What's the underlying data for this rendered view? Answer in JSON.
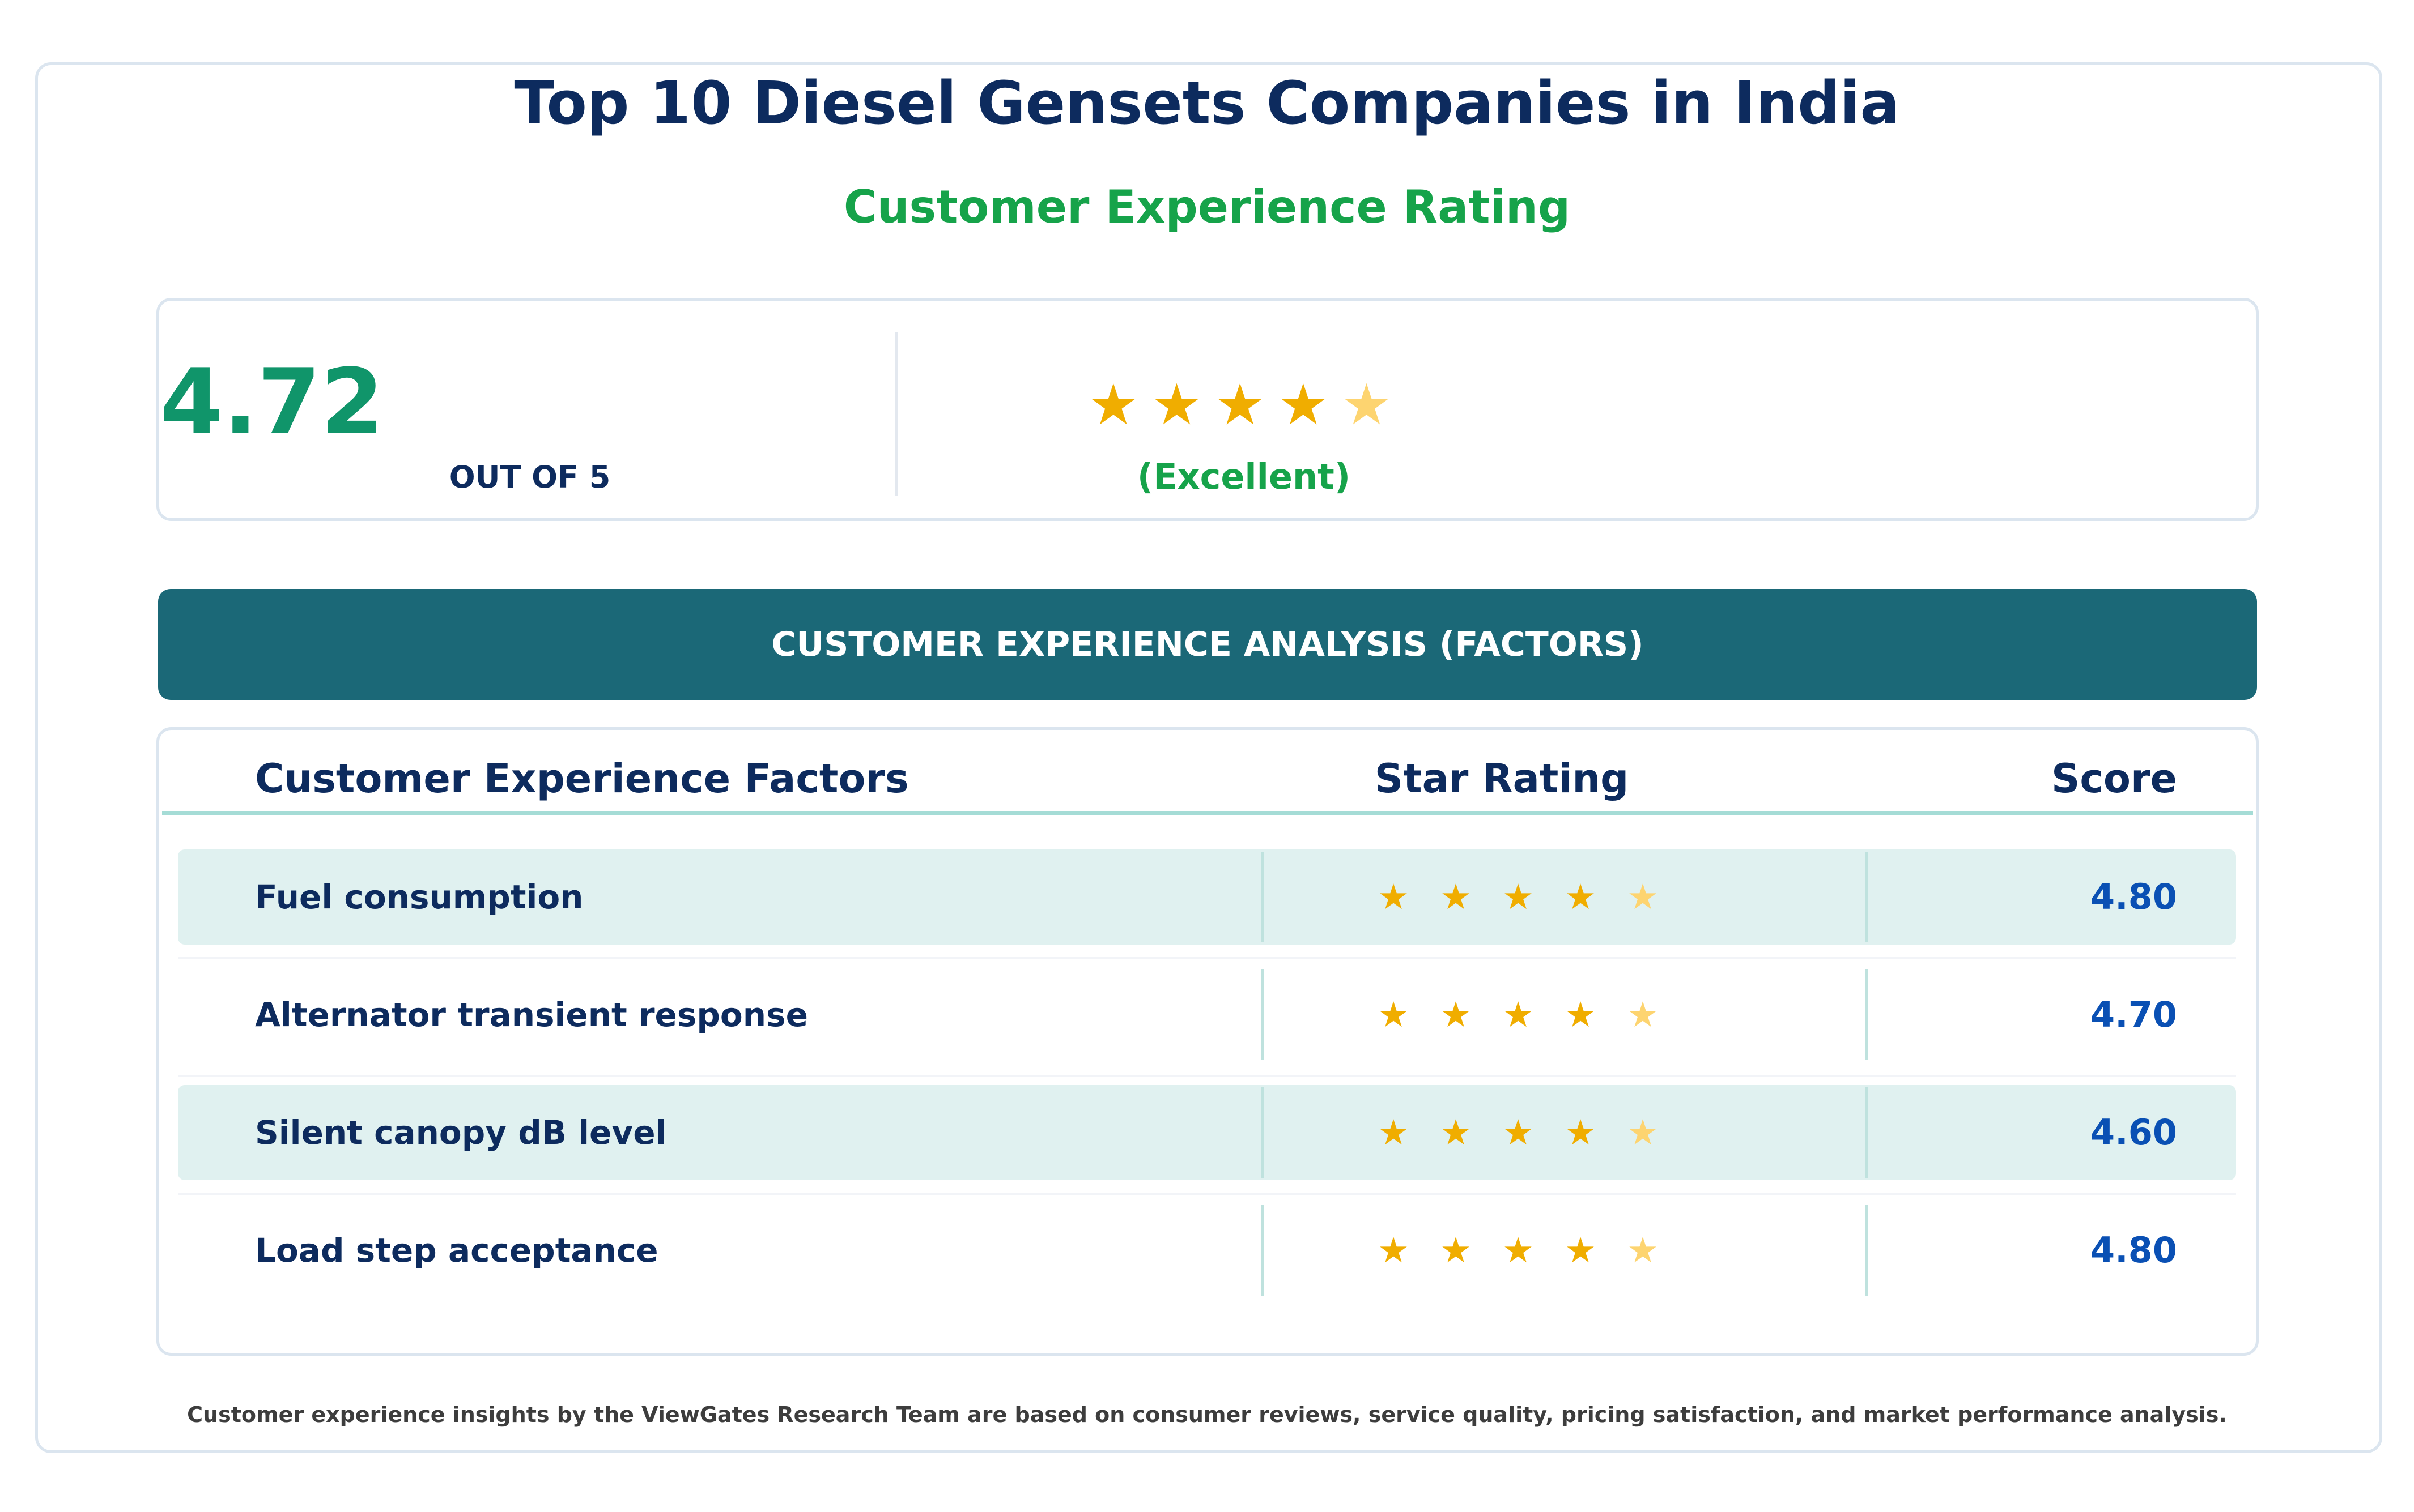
{
  "title": "Top 10 Diesel Gensets Companies in India",
  "subtitle": "Customer Experience Rating",
  "summary": {
    "score": "4.72",
    "out_of": "OUT OF 5",
    "rating_value": 4.72,
    "rating_max": 5,
    "label": "(Excellent)"
  },
  "banner": "CUSTOMER EXPERIENCE ANALYSIS (FACTORS)",
  "table": {
    "headers": [
      "Customer Experience Factors",
      "Star Rating",
      "Score"
    ],
    "rows": [
      {
        "factor": "Fuel consumption",
        "score": "4.80",
        "stars": 4.8
      },
      {
        "factor": "Alternator transient response",
        "score": "4.70",
        "stars": 4.7
      },
      {
        "factor": "Silent canopy dB level",
        "score": "4.60",
        "stars": 4.6
      },
      {
        "factor": "Load step acceptance",
        "score": "4.80",
        "stars": 4.8
      }
    ]
  },
  "footer": "Customer experience insights by the ViewGates Research Team are based on consumer reviews, service quality, pricing satisfaction, and market performance analysis.",
  "colors": {
    "title": "#0d2b5e",
    "accent_green": "#16a34a",
    "score_green": "#10956a",
    "banner": "#1b6877",
    "star_full": "#f0ad00",
    "star_partial": "#fdd470",
    "score_blue": "#0a50b4",
    "row_shade": "#e0f1f0"
  },
  "icons": {
    "star": "star-icon"
  }
}
